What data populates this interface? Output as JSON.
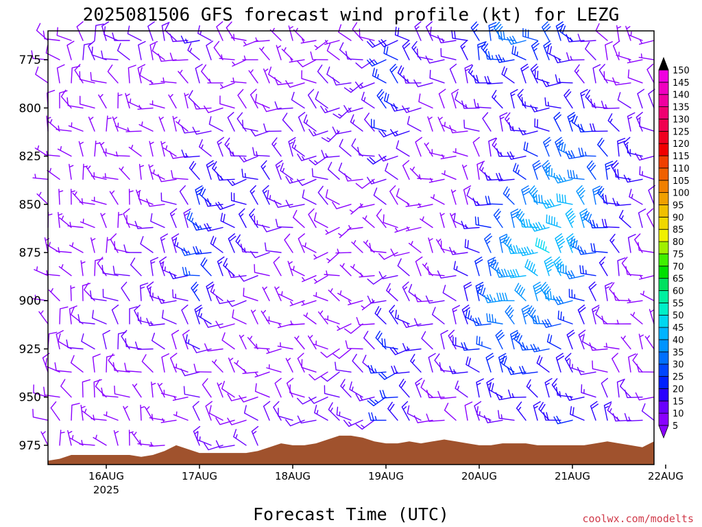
{
  "chart_data": {
    "type": "wind-barb profile",
    "title": "2025081506 GFS forecast wind profile (kt) for LEZG",
    "xlabel": "Forecast Time (UTC)",
    "ylabel": "",
    "y_axis": {
      "scale": "pressure (inverted)",
      "ticks": [
        775,
        800,
        825,
        850,
        875,
        900,
        925,
        950,
        975
      ],
      "range": [
        760,
        985
      ]
    },
    "x_axis": {
      "range_hours": [
        9,
        165
      ],
      "ticks": [
        {
          "label": "16AUG",
          "hour": 24,
          "sublabel": "2025"
        },
        {
          "label": "17AUG",
          "hour": 48
        },
        {
          "label": "18AUG",
          "hour": 72
        },
        {
          "label": "19AUG",
          "hour": 96
        },
        {
          "label": "20AUG",
          "hour": 120
        },
        {
          "label": "21AUG",
          "hour": 144
        },
        {
          "label": "22AUG",
          "hour": 168
        }
      ]
    },
    "colorbar": {
      "unit": "kt",
      "levels": [
        5,
        10,
        15,
        20,
        25,
        30,
        35,
        40,
        45,
        50,
        55,
        60,
        65,
        70,
        75,
        80,
        85,
        90,
        95,
        100,
        105,
        110,
        115,
        120,
        125,
        130,
        135,
        140,
        145,
        150
      ],
      "colors": [
        "#8a00ff",
        "#6a00ff",
        "#2a00ff",
        "#0020ff",
        "#0046ff",
        "#0070ff",
        "#0094ff",
        "#00b4ff",
        "#00d8f0",
        "#00f0c8",
        "#00f0a0",
        "#00e060",
        "#00e000",
        "#40f000",
        "#a0f000",
        "#f0f000",
        "#f0d800",
        "#f0c000",
        "#f0a000",
        "#f08000",
        "#f06000",
        "#f04000",
        "#f00000",
        "#f00020",
        "#f00050",
        "#f00070",
        "#f000a0",
        "#f000c0",
        "#f000e0",
        "#e000ff"
      ]
    },
    "terrain": {
      "color": "#a0522d",
      "pressure_by_hour": [
        [
          9,
          983
        ],
        [
          12,
          982
        ],
        [
          15,
          980
        ],
        [
          18,
          980
        ],
        [
          21,
          980
        ],
        [
          24,
          980
        ],
        [
          27,
          980
        ],
        [
          30,
          980
        ],
        [
          33,
          981
        ],
        [
          36,
          980
        ],
        [
          39,
          978
        ],
        [
          42,
          975
        ],
        [
          45,
          977
        ],
        [
          48,
          979
        ],
        [
          51,
          979
        ],
        [
          54,
          979
        ],
        [
          57,
          979
        ],
        [
          60,
          979
        ],
        [
          63,
          978
        ],
        [
          66,
          976
        ],
        [
          69,
          974
        ],
        [
          72,
          975
        ],
        [
          75,
          975
        ],
        [
          78,
          974
        ],
        [
          81,
          972
        ],
        [
          84,
          970
        ],
        [
          87,
          970
        ],
        [
          90,
          971
        ],
        [
          93,
          973
        ],
        [
          96,
          974
        ],
        [
          99,
          974
        ],
        [
          102,
          973
        ],
        [
          105,
          974
        ],
        [
          108,
          973
        ],
        [
          111,
          972
        ],
        [
          114,
          973
        ],
        [
          117,
          974
        ],
        [
          120,
          975
        ],
        [
          123,
          975
        ],
        [
          126,
          974
        ],
        [
          129,
          974
        ],
        [
          132,
          974
        ],
        [
          135,
          975
        ],
        [
          138,
          975
        ],
        [
          141,
          975
        ],
        [
          144,
          975
        ],
        [
          147,
          975
        ],
        [
          150,
          974
        ],
        [
          153,
          973
        ],
        [
          156,
          974
        ],
        [
          159,
          975
        ],
        [
          162,
          976
        ],
        [
          165,
          973
        ]
      ]
    },
    "barbs": {
      "time_step_hours": 3,
      "levels": [
        765,
        775,
        787,
        800,
        812,
        825,
        837,
        850,
        862,
        875,
        887,
        900,
        912,
        925,
        937,
        950,
        962,
        975
      ],
      "representative_speed_by_hour_kt": [
        [
          9,
          8
        ],
        [
          24,
          10
        ],
        [
          45,
          14
        ],
        [
          48,
          25
        ],
        [
          54,
          18
        ],
        [
          72,
          12
        ],
        [
          93,
          12
        ],
        [
          96,
          22
        ],
        [
          102,
          18
        ],
        [
          108,
          10
        ],
        [
          114,
          12
        ],
        [
          120,
          22
        ],
        [
          126,
          32
        ],
        [
          132,
          38
        ],
        [
          138,
          42
        ],
        [
          144,
          40
        ],
        [
          150,
          28
        ],
        [
          156,
          18
        ],
        [
          165,
          12
        ]
      ],
      "representative_direction_from_deg_by_hour": [
        [
          9,
          320
        ],
        [
          24,
          320
        ],
        [
          48,
          300
        ],
        [
          60,
          290
        ],
        [
          72,
          300
        ],
        [
          84,
          270
        ],
        [
          96,
          280
        ],
        [
          108,
          300
        ],
        [
          120,
          310
        ],
        [
          132,
          300
        ],
        [
          144,
          300
        ],
        [
          156,
          310
        ],
        [
          165,
          300
        ]
      ]
    },
    "credit": "coolwx.com/modelts"
  }
}
